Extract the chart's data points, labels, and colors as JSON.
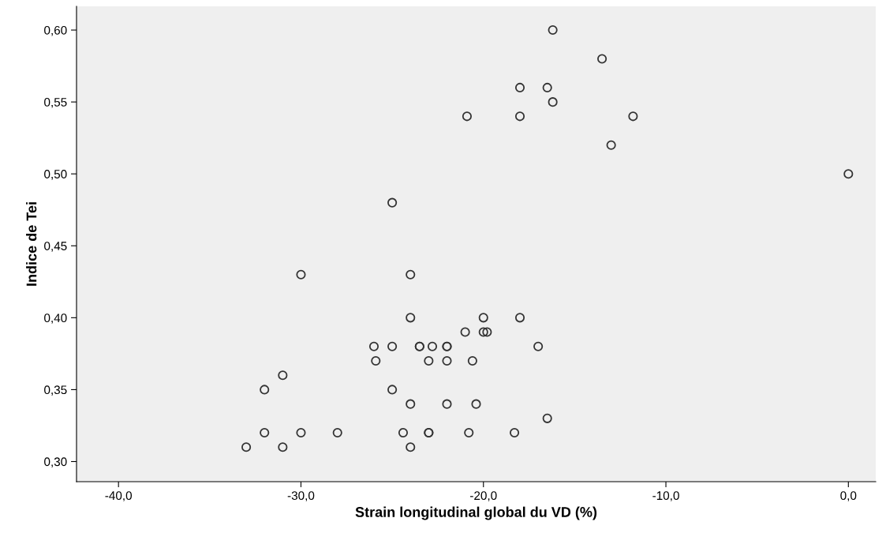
{
  "chart_data": {
    "type": "scatter",
    "xlabel": "Strain longitudinal global du VD (%)",
    "ylabel": "Indice de Tei",
    "series": [
      {
        "color": "#333333",
        "marker": "circle",
        "x": [
          -16.2,
          -13.5,
          -18.0,
          -16.5,
          -16.2,
          -20.9,
          -18.0,
          -11.8,
          -13.0,
          0.0,
          -25.0,
          -30.0,
          -24.0,
          -24.0,
          -20.0,
          -18.0,
          -21.0,
          -20.0,
          -19.8,
          -26.0,
          -25.0,
          -23.5,
          -23.5,
          -22.8,
          -22.0,
          -22.0,
          -17.0,
          -25.9,
          -23.0,
          -22.0,
          -20.6,
          -31.0,
          -32.0,
          -25.0,
          -24.0,
          -22.0,
          -20.4,
          -16.5,
          -32.0,
          -30.0,
          -28.0,
          -24.4,
          -23.0,
          -23.0,
          -20.8,
          -18.3,
          -33.0,
          -31.0,
          -24.0
        ],
        "values": [
          0.6,
          0.58,
          0.56,
          0.56,
          0.55,
          0.54,
          0.54,
          0.54,
          0.52,
          0.5,
          0.48,
          0.43,
          0.43,
          0.4,
          0.4,
          0.4,
          0.39,
          0.39,
          0.39,
          0.38,
          0.38,
          0.38,
          0.38,
          0.38,
          0.38,
          0.38,
          0.38,
          0.37,
          0.37,
          0.37,
          0.37,
          0.36,
          0.35,
          0.35,
          0.34,
          0.34,
          0.34,
          0.33,
          0.32,
          0.32,
          0.32,
          0.32,
          0.32,
          0.32,
          0.32,
          0.32,
          0.31,
          0.31,
          0.31
        ]
      }
    ],
    "xlim": [
      -42.3,
      1.5
    ],
    "ylim": [
      0.286,
      0.6165
    ],
    "xticks": [
      {
        "value": -40,
        "label": "-40,0"
      },
      {
        "value": -30,
        "label": "-30,0"
      },
      {
        "value": -20,
        "label": "-20,0"
      },
      {
        "value": -10,
        "label": "-10,0"
      },
      {
        "value": 0,
        "label": "0,0"
      }
    ],
    "yticks": [
      {
        "value": 0.3,
        "label": "0,30"
      },
      {
        "value": 0.35,
        "label": "0,35"
      },
      {
        "value": 0.4,
        "label": "0,40"
      },
      {
        "value": 0.45,
        "label": "0,45"
      },
      {
        "value": 0.5,
        "label": "0,50"
      },
      {
        "value": 0.55,
        "label": "0,55"
      },
      {
        "value": 0.6,
        "label": "0,60"
      }
    ],
    "grid": false,
    "legend": false
  }
}
